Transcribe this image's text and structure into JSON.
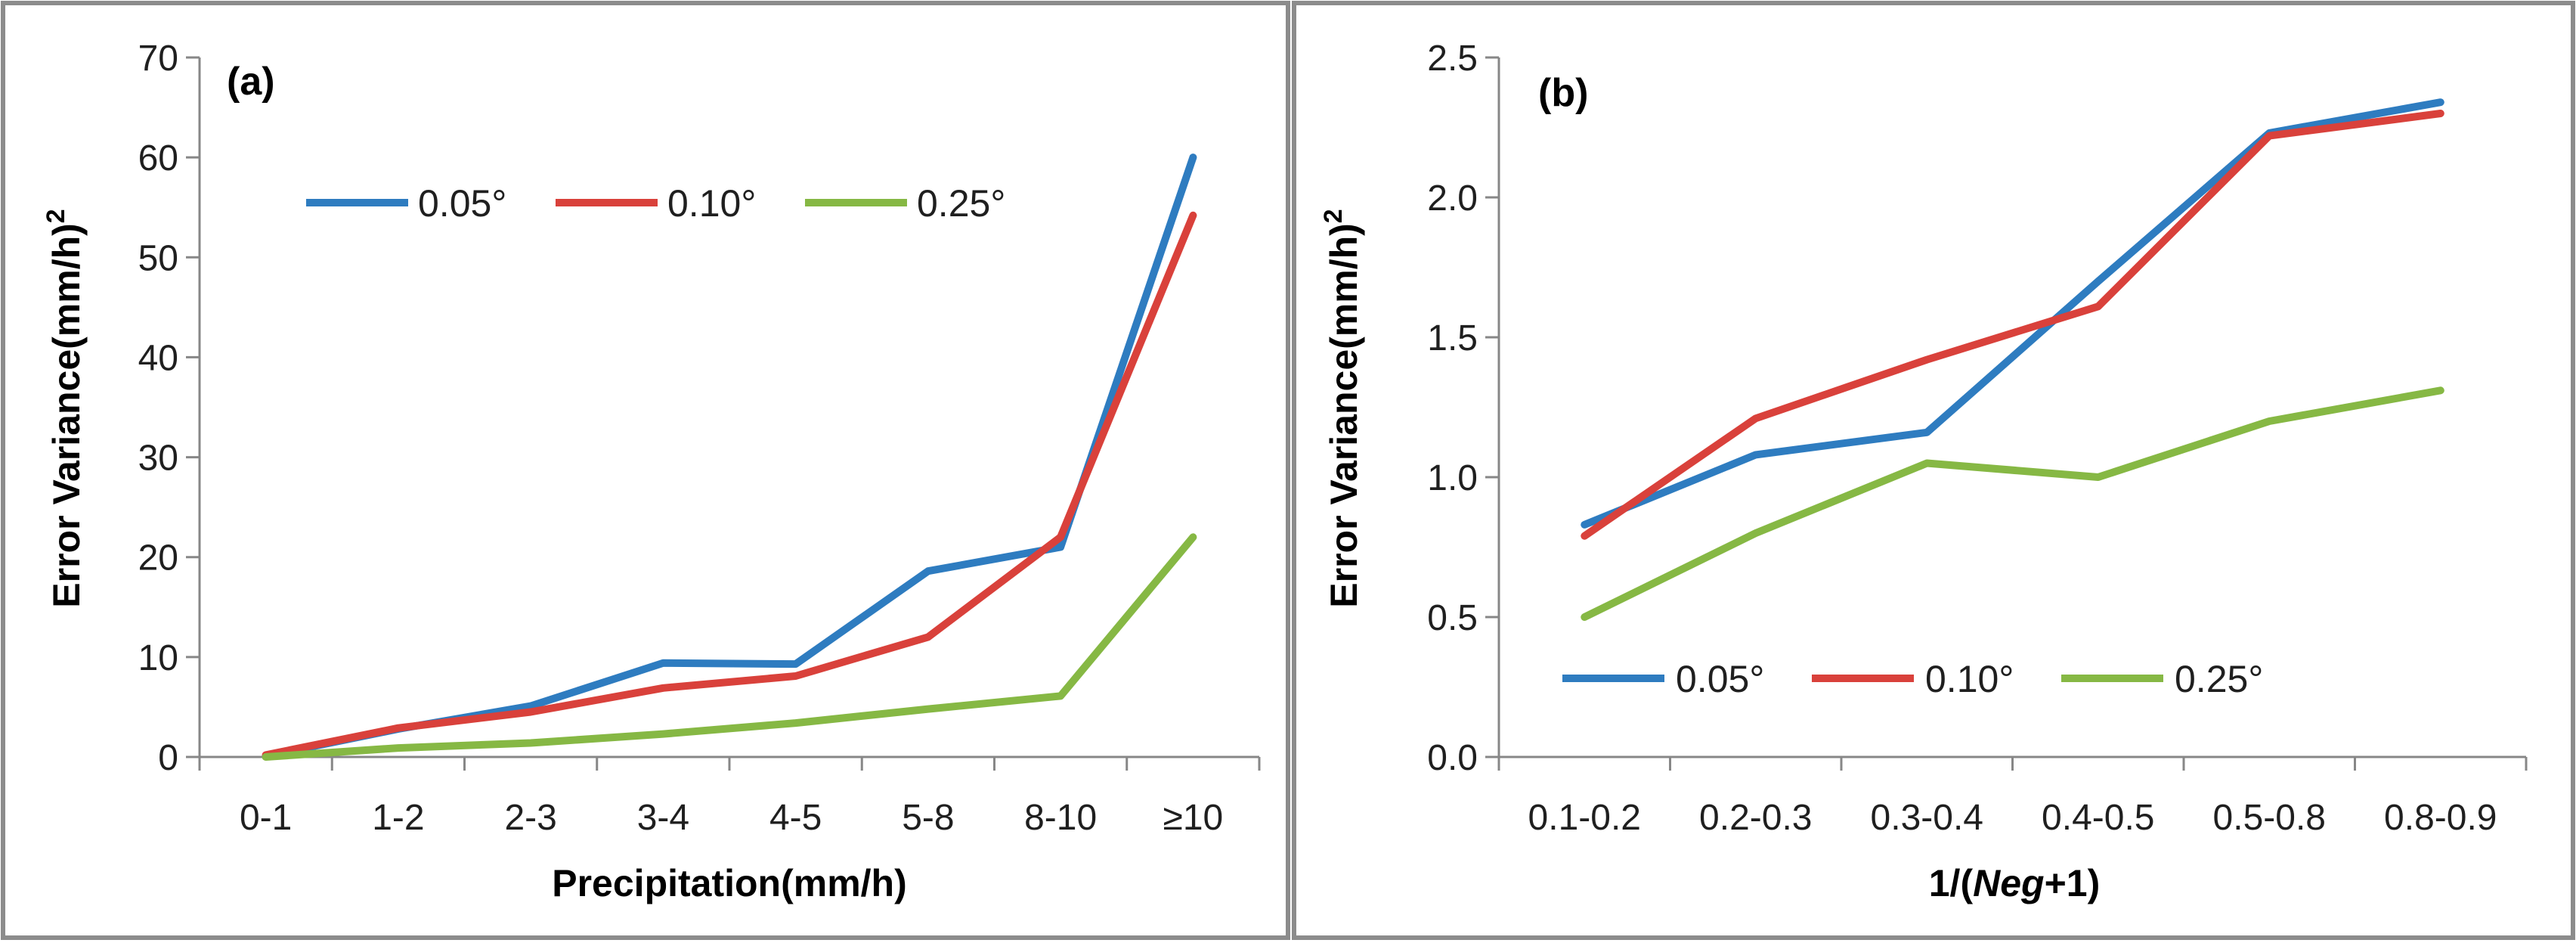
{
  "chart_data": [
    {
      "type": "line",
      "panel_label": "(a)",
      "xlabel": "Precipitation(mm/h)",
      "ylabel": "Error Variance(mm/h)",
      "ylabel_sup": "2",
      "categories": [
        "0-1",
        "1-2",
        "2-3",
        "3-4",
        "4-5",
        "5-8",
        "8-10",
        "≥10"
      ],
      "ylim": [
        0,
        70
      ],
      "yticks": [
        "0",
        "10",
        "20",
        "30",
        "40",
        "50",
        "60",
        "70"
      ],
      "grid": false,
      "legend_position": "top-center",
      "series": [
        {
          "name": "0.05°",
          "color": "#2e7cc0",
          "values": [
            0.1,
            2.8,
            5.1,
            9.4,
            9.3,
            18.6,
            21.0,
            60.0
          ]
        },
        {
          "name": "0.10°",
          "color": "#d9413b",
          "values": [
            0.2,
            2.9,
            4.5,
            6.9,
            8.1,
            12.0,
            22.0,
            54.2
          ]
        },
        {
          "name": "0.25°",
          "color": "#86b844",
          "values": [
            0.0,
            0.9,
            1.4,
            2.3,
            3.4,
            4.8,
            6.1,
            22.0
          ]
        }
      ]
    },
    {
      "type": "line",
      "panel_label": "(b)",
      "xlabel_prefix": "1/(",
      "xlabel_italic": "Neg",
      "xlabel_suffix": "+1)",
      "ylabel": "Error Variance(mm/h)",
      "ylabel_sup": "2",
      "categories": [
        "0.1-0.2",
        "0.2-0.3",
        "0.3-0.4",
        "0.4-0.5",
        "0.5-0.8",
        "0.8-0.9"
      ],
      "ylim": [
        0,
        2.5
      ],
      "yticks": [
        "0.0",
        "0.5",
        "1.0",
        "1.5",
        "2.0",
        "2.5"
      ],
      "grid": false,
      "legend_position": "bottom-left",
      "series": [
        {
          "name": "0.05°",
          "color": "#2e7cc0",
          "values": [
            0.83,
            1.08,
            1.16,
            1.7,
            2.23,
            2.34
          ]
        },
        {
          "name": "0.10°",
          "color": "#d9413b",
          "values": [
            0.79,
            1.21,
            1.42,
            1.61,
            2.22,
            2.3
          ]
        },
        {
          "name": "0.25°",
          "color": "#86b844",
          "values": [
            0.5,
            0.8,
            1.05,
            1.0,
            1.2,
            1.31
          ]
        }
      ]
    }
  ]
}
